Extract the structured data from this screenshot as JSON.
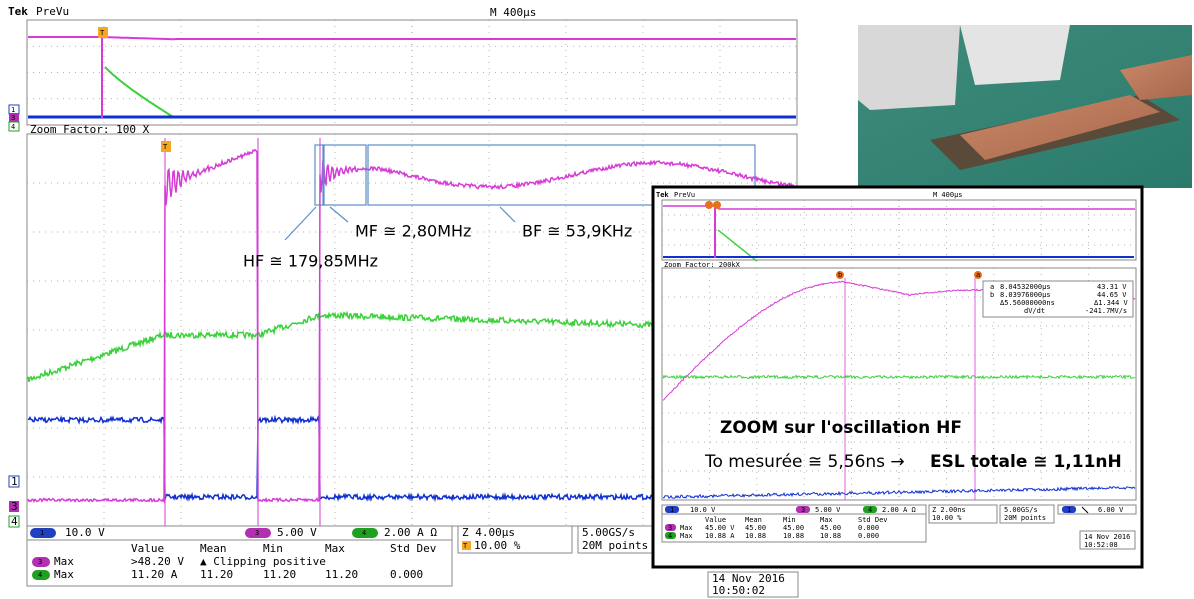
{
  "main_scope": {
    "brand": "Tek",
    "mode": "PreVu",
    "timebase": "M 400µs",
    "zoom_factor": "Zoom Factor: 100 X",
    "trigger_marker": "T",
    "preview_markers": [
      "1",
      "3",
      "4"
    ],
    "zoom_markers": [
      "1",
      "3",
      "4"
    ],
    "channels": [
      {
        "id": "1",
        "scale": "10.0 V"
      },
      {
        "id": "3",
        "scale": "5.00 V"
      },
      {
        "id": "4",
        "scale": "2.00 A Ω"
      }
    ],
    "zoom_time": "Z 4.00µs",
    "trigger_icon": "T",
    "trigger_pos": "10.00 %",
    "sample_rate": "5.00GS/s",
    "record_length": "20M points",
    "measurements": {
      "headers": [
        "Value",
        "Mean",
        "Min",
        "Max",
        "Std Dev"
      ],
      "rows": [
        {
          "channel": "3",
          "type": "Max",
          "cells": [
            ">48.20 V",
            "▲ Clipping positive"
          ]
        },
        {
          "channel": "4",
          "type": "Max",
          "cells": [
            "11.20 A",
            "11.20",
            "11.20",
            "11.20",
            "0.000"
          ]
        }
      ]
    },
    "date": "14 Nov 2016",
    "time": "10:50:02"
  },
  "annotations": {
    "hf": "HF ≅ 179,85MHz",
    "mf": "MF ≅ 2,80MHz",
    "bf": "BF ≅ 53,9KHz"
  },
  "inset_scope": {
    "brand": "Tek",
    "mode": "PreVu",
    "timebase": "M 400µs",
    "zoom_factor": "Zoom Factor: 200kX",
    "cursor_a": {
      "label": "a",
      "time": "8.04532000µs",
      "value": "43.31 V"
    },
    "cursor_b": {
      "label": "b",
      "time": "8.03976000µs",
      "value": "44.65 V"
    },
    "delta_time": "Δ5.56000000ns",
    "delta_value": "Δ1.344 V",
    "rate_label": "dV/dt",
    "rate": "-241.7MV/s",
    "channels": [
      {
        "id": "1",
        "scale": "10.0 V"
      },
      {
        "id": "3",
        "scale": "5.00 V"
      },
      {
        "id": "4",
        "scale": "2.00 A Ω"
      }
    ],
    "zoom_time": "Z 2.00ns",
    "trigger_pos": "10.00 %",
    "sample_rate": "5.00GS/s",
    "record_length": "20M points",
    "trigger_channel": "1",
    "trigger_level": "6.00 V",
    "measurements": {
      "headers": [
        "Value",
        "Mean",
        "Min",
        "Max",
        "Std Dev"
      ],
      "rows": [
        {
          "channel": "3",
          "type": "Max",
          "cells": [
            "45.00 V",
            "45.00",
            "45.00",
            "45.00",
            "0.000"
          ]
        },
        {
          "channel": "4",
          "type": "Max",
          "cells": [
            "10.88 A",
            "10.88",
            "10.88",
            "10.88",
            "0.000"
          ]
        }
      ]
    },
    "date": "14 Nov 2016",
    "time": "10:52:08"
  },
  "inset_text": {
    "title": "ZOOM sur l'oscillation HF",
    "measure": "To mesurée ≅ 5,56ns →",
    "result": "ESL totale ≅ 1,11nH"
  }
}
